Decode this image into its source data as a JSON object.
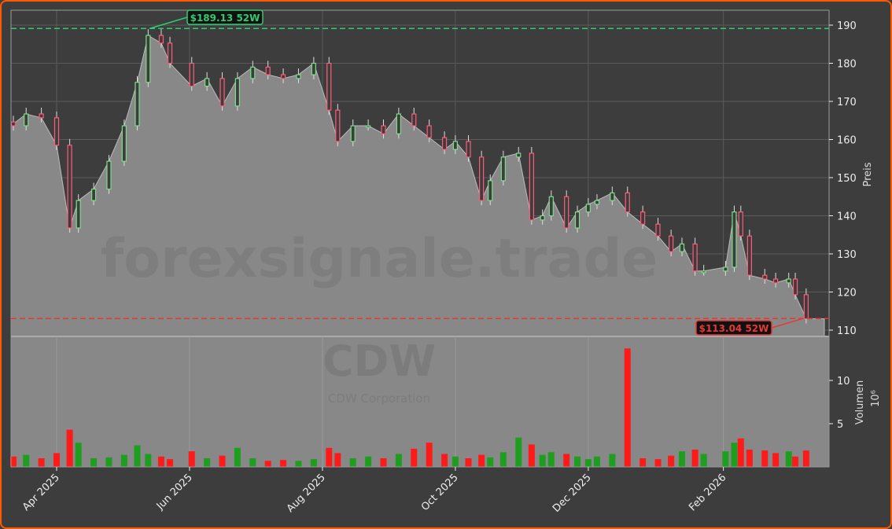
{
  "chart_data": {
    "type": "candlestick",
    "ticker_watermark": "CDW",
    "company_watermark": "CDW Corporation",
    "site_watermark": "forexsignale.trade",
    "ylabel": "Preis",
    "volume_label": "Volumen",
    "volume_unit": "10⁶",
    "ylim": [
      110,
      192
    ],
    "yticks": [
      110,
      120,
      130,
      140,
      150,
      160,
      170,
      180,
      190
    ],
    "volume_ylim": [
      0,
      15
    ],
    "volume_yticks": [
      5,
      10
    ],
    "xticks": [
      {
        "date": "2025-04-01",
        "label": "Apr 2025"
      },
      {
        "date": "2025-06-01",
        "label": "Jun 2025"
      },
      {
        "date": "2025-08-01",
        "label": "Aug 2025"
      },
      {
        "date": "2025-10-01",
        "label": "Oct 2025"
      },
      {
        "date": "2025-12-01",
        "label": "Dec 2025"
      },
      {
        "date": "2026-02-01",
        "label": "Feb 2026"
      }
    ],
    "grid": true,
    "high_52w": {
      "value": 189.13,
      "label": "$189.13 52W",
      "date": "2025-05-13",
      "color": "#2ecc71"
    },
    "low_52w": {
      "value": 113.04,
      "label": "$113.04 52W",
      "date": "2026-03-11",
      "color": "#e53935"
    },
    "colors": {
      "up": "#1e9e1e",
      "down": "#ff1a1a",
      "candle_up": "#7ddc8a",
      "candle_down": "#ff5c7a",
      "area": "#888888",
      "background": "#3d3d3d",
      "border": "#ff5a00"
    },
    "dates": [
      "2025-03-11",
      "2025-03-18",
      "2025-03-25",
      "2025-04-01",
      "2025-04-07",
      "2025-04-11",
      "2025-04-18",
      "2025-04-25",
      "2025-05-02",
      "2025-05-08",
      "2025-05-13",
      "2025-05-19",
      "2025-05-23",
      "2025-06-02",
      "2025-06-09",
      "2025-06-16",
      "2025-06-23",
      "2025-06-30",
      "2025-07-07",
      "2025-07-14",
      "2025-07-21",
      "2025-07-28",
      "2025-08-04",
      "2025-08-08",
      "2025-08-15",
      "2025-08-22",
      "2025-08-29",
      "2025-09-05",
      "2025-09-12",
      "2025-09-19",
      "2025-09-26",
      "2025-10-01",
      "2025-10-07",
      "2025-10-13",
      "2025-10-17",
      "2025-10-23",
      "2025-10-30",
      "2025-11-05",
      "2025-11-10",
      "2025-11-14",
      "2025-11-21",
      "2025-11-26",
      "2025-12-01",
      "2025-12-05",
      "2025-12-12",
      "2025-12-19",
      "2025-12-26",
      "2026-01-02",
      "2026-01-08",
      "2026-01-13",
      "2026-01-19",
      "2026-01-23",
      "2026-02-02",
      "2026-02-06",
      "2026-02-09",
      "2026-02-13",
      "2026-02-20",
      "2026-02-25",
      "2026-03-03",
      "2026-03-06",
      "2026-03-11"
    ],
    "close": [
      163.6,
      166.7,
      165.7,
      158.5,
      136.8,
      144.0,
      147.0,
      154.3,
      163.6,
      175.0,
      187.3,
      185.3,
      180.0,
      174.0,
      176.0,
      168.8,
      176.0,
      179.0,
      177.0,
      176.0,
      177.0,
      180.0,
      167.7,
      159.5,
      163.6,
      163.6,
      161.5,
      166.7,
      163.6,
      160.5,
      157.4,
      159.5,
      155.4,
      144.0,
      149.2,
      155.4,
      156.4,
      138.9,
      140.0,
      145.0,
      136.8,
      141.0,
      143.0,
      144.0,
      146.0,
      141.0,
      137.8,
      134.7,
      130.6,
      132.6,
      125.5,
      125.5,
      126.5,
      141.0,
      134.7,
      124.4,
      123.4,
      122.4,
      123.4,
      119.3,
      113.0
    ],
    "volume": [
      1.2,
      1.4,
      1.0,
      1.6,
      4.3,
      2.8,
      1.0,
      1.1,
      1.4,
      2.5,
      1.5,
      1.2,
      0.9,
      1.8,
      1.0,
      1.3,
      2.2,
      1.0,
      0.7,
      0.8,
      0.7,
      0.9,
      2.2,
      1.6,
      1.0,
      1.2,
      1.0,
      1.5,
      2.1,
      2.8,
      1.5,
      1.2,
      1.0,
      1.4,
      1.1,
      1.7,
      3.4,
      2.6,
      1.4,
      1.7,
      1.5,
      1.2,
      0.9,
      1.2,
      1.5,
      13.7,
      1.0,
      0.9,
      1.3,
      1.8,
      2.0,
      1.5,
      1.8,
      2.8,
      3.3,
      2.0,
      1.9,
      1.6,
      1.8,
      1.2,
      1.9
    ]
  }
}
